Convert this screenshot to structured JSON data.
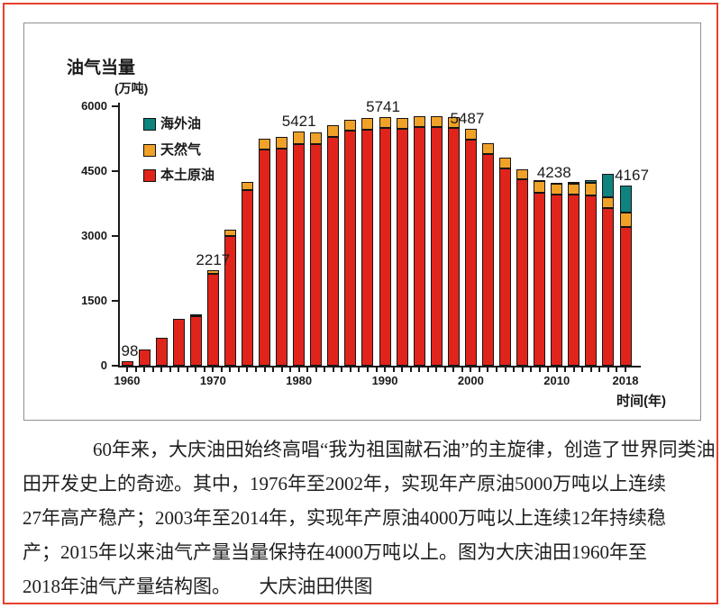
{
  "page": {
    "border_color": "#e6402e",
    "background": "#ffffff"
  },
  "chart": {
    "title": "油气当量",
    "unit_label": "(万吨)",
    "x_axis_title": "时间(年)",
    "legend": [
      {
        "name": "海外油",
        "color": "#0f837d"
      },
      {
        "name": "天然气",
        "color": "#f0a128"
      },
      {
        "name": "本土原油",
        "color": "#e0241c"
      }
    ],
    "y_ticks": [
      "0",
      "1500",
      "3000",
      "4500",
      "6000"
    ],
    "x_tick_labels": [
      "1960",
      "1970",
      "1980",
      "1990",
      "2000",
      "2010",
      "2018"
    ]
  },
  "chart_data": {
    "type": "bar",
    "stacked": true,
    "title": "油气当量(万吨) 1960-2018",
    "xlabel": "时间(年)",
    "ylabel": "油气当量(万吨)",
    "ylim": [
      0,
      6000
    ],
    "grid": false,
    "legend_position": "inside-top-left",
    "categories": [
      1960,
      1962,
      1964,
      1966,
      1968,
      1970,
      1972,
      1974,
      1976,
      1978,
      1980,
      1982,
      1984,
      1986,
      1988,
      1990,
      1992,
      1994,
      1996,
      1998,
      2000,
      2002,
      2004,
      2006,
      2008,
      2010,
      2012,
      2014,
      2016,
      2018
    ],
    "series": [
      {
        "name": "本土原油",
        "color": "#e0241c",
        "values": [
          98,
          380,
          650,
          1080,
          1150,
          2120,
          2990,
          4060,
          5000,
          5030,
          5135,
          5130,
          5300,
          5430,
          5465,
          5491,
          5480,
          5530,
          5530,
          5510,
          5237,
          4900,
          4560,
          4320,
          4000,
          3968,
          3960,
          3935,
          3640,
          3200
        ]
      },
      {
        "name": "天然气",
        "color": "#f0a128",
        "values": [
          0,
          0,
          0,
          0,
          45,
          97,
          160,
          180,
          255,
          260,
          286,
          260,
          260,
          260,
          255,
          250,
          250,
          250,
          250,
          250,
          250,
          250,
          250,
          230,
          270,
          230,
          240,
          290,
          265,
          350
        ]
      },
      {
        "name": "海外油",
        "color": "#0f837d",
        "values": [
          0,
          0,
          0,
          0,
          0,
          0,
          0,
          0,
          0,
          0,
          0,
          0,
          0,
          0,
          0,
          0,
          0,
          0,
          0,
          0,
          0,
          0,
          0,
          0,
          20,
          40,
          45,
          60,
          535,
          617
        ]
      }
    ],
    "totals": [
      98,
      380,
      650,
      1080,
      1195,
      2217,
      3150,
      4240,
      5255,
      5290,
      5421,
      5390,
      5560,
      5690,
      5720,
      5741,
      5730,
      5780,
      5780,
      5760,
      5487,
      5150,
      4810,
      4550,
      4290,
      4238,
      4245,
      4285,
      4440,
      4167
    ],
    "point_labels": [
      {
        "year": 1960,
        "label": "98",
        "dx": 3
      },
      {
        "year": 1970,
        "label": "2217",
        "dx": 0
      },
      {
        "year": 1980,
        "label": "5421",
        "dx": 0
      },
      {
        "year": 1990,
        "label": "5741",
        "dx": -2
      },
      {
        "year": 2000,
        "label": "5487",
        "dx": -4
      },
      {
        "year": 2010,
        "label": "4238",
        "dx": -3
      },
      {
        "year": 2018,
        "label": "4167",
        "dx": 7
      }
    ]
  },
  "caption": {
    "lines": [
      "60年来，大庆油田始终高唱“我为祖国献石油”的主旋律，创造了世界同类油",
      "田开发史上的奇迹。其中，1976年至2002年，实现年产原油5000万吨以上连续",
      "27年高产稳产；2003年至2014年，实现年产原油4000万吨以上连续12年持续稳",
      "产；2015年以来油气产量当量保持在4000万吨以上。图为大庆油田1960年至",
      "2018年油气产量结构图。　　大庆油田供图"
    ]
  }
}
